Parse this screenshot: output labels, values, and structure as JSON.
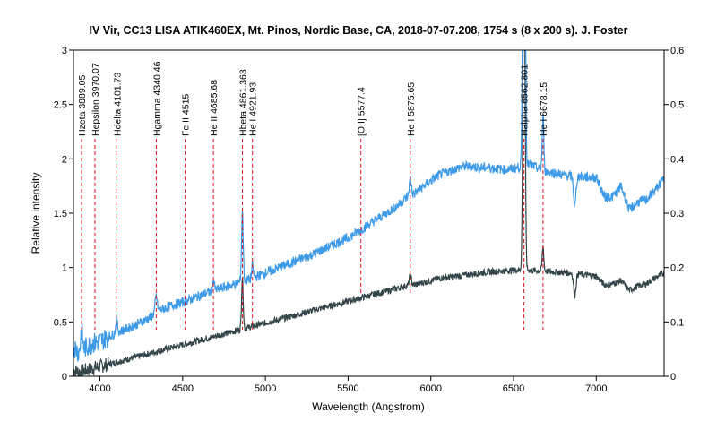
{
  "chart_data": {
    "type": "line",
    "title": "IV Vir, CC13 LISA ATIK460EX, Mt. Pinos, Nordic Base, CA,  2018-07-07.208, 1754 s (8 x 200 s).  J. Foster",
    "xlabel": "Wavelength (Angstrom)",
    "ylabel": "Relative intensity",
    "xlim": [
      3840,
      7410
    ],
    "ylim": [
      0,
      3
    ],
    "y2lim": [
      0,
      0.6
    ],
    "xticks": [
      4000,
      4500,
      5000,
      5500,
      6000,
      6500,
      7000
    ],
    "xtick_labels": [
      "4000",
      "4500",
      "5000",
      "5500",
      "6000",
      "6500",
      "7000"
    ],
    "yticks": [
      0,
      0.5,
      1,
      1.5,
      2,
      2.5,
      3
    ],
    "ytick_labels": [
      "0",
      "0.5",
      "1",
      "1.5",
      "2",
      "2.5",
      "3"
    ],
    "y2ticks": [
      0,
      0.1,
      0.2,
      0.3,
      0.4,
      0.5,
      0.6
    ],
    "y2tick_labels": [
      "0",
      "0.1",
      "0.2",
      "0.3",
      "0.4",
      "0.5",
      "0.6"
    ],
    "grid": false,
    "lines": [
      {
        "label": "Hzeta 3889.05",
        "x": 3889.05
      },
      {
        "label": "Hepsilon 3970.07",
        "x": 3970.07
      },
      {
        "label": "Hdelta 4101.73",
        "x": 4101.73
      },
      {
        "label": "Hgamma 4340.46",
        "x": 4340.46
      },
      {
        "label": "Fe II 4515",
        "x": 4515
      },
      {
        "label": "He II 4685.68",
        "x": 4685.68
      },
      {
        "label": "Hbeta 4861.363",
        "x": 4861.363
      },
      {
        "label": "He I 4921.93",
        "x": 4921.93
      },
      {
        "label": "[O I] 5577.4",
        "x": 5577.4
      },
      {
        "label": "He I 5875.65",
        "x": 5875.65
      },
      {
        "label": "Halpha 6562.801",
        "x": 6562.801
      },
      {
        "label": "He I 6678.15",
        "x": 6678.15
      }
    ],
    "series": [
      {
        "axis": "left",
        "color": "#3d9ae8",
        "x": [
          3840,
          3870,
          3900,
          3950,
          4000,
          4050,
          4100,
          4150,
          4200,
          4250,
          4300,
          4350,
          4400,
          4450,
          4500,
          4550,
          4600,
          4650,
          4700,
          4750,
          4800,
          4850,
          4900,
          4950,
          5000,
          5050,
          5100,
          5150,
          5200,
          5250,
          5300,
          5350,
          5400,
          5450,
          5500,
          5550,
          5600,
          5650,
          5700,
          5750,
          5800,
          5850,
          5900,
          5950,
          6000,
          6050,
          6100,
          6150,
          6200,
          6250,
          6300,
          6350,
          6400,
          6450,
          6500,
          6550,
          6600,
          6650,
          6700,
          6750,
          6800,
          6850,
          6900,
          6950,
          7000,
          7050,
          7100,
          7150,
          7200,
          7250,
          7300,
          7350,
          7410
        ],
        "y": [
          0.28,
          0.22,
          0.25,
          0.3,
          0.32,
          0.36,
          0.4,
          0.43,
          0.46,
          0.5,
          0.54,
          0.6,
          0.63,
          0.66,
          0.68,
          0.71,
          0.74,
          0.77,
          0.79,
          0.82,
          0.84,
          0.87,
          0.89,
          0.92,
          0.95,
          0.98,
          1.01,
          1.04,
          1.07,
          1.1,
          1.13,
          1.17,
          1.2,
          1.24,
          1.27,
          1.32,
          1.37,
          1.42,
          1.47,
          1.52,
          1.57,
          1.64,
          1.68,
          1.74,
          1.8,
          1.85,
          1.88,
          1.91,
          1.93,
          1.93,
          1.92,
          1.92,
          1.91,
          1.9,
          1.91,
          1.93,
          1.95,
          1.91,
          1.88,
          1.87,
          1.85,
          1.84,
          1.84,
          1.83,
          1.83,
          1.65,
          1.65,
          1.75,
          1.53,
          1.6,
          1.62,
          1.7,
          1.82
        ]
      },
      {
        "axis": "right",
        "color": "#34454a",
        "x": [
          3840,
          3870,
          3900,
          3950,
          4000,
          4050,
          4100,
          4150,
          4200,
          4250,
          4300,
          4350,
          4400,
          4450,
          4500,
          4550,
          4600,
          4650,
          4700,
          4750,
          4800,
          4850,
          4900,
          4950,
          5000,
          5050,
          5100,
          5150,
          5200,
          5250,
          5300,
          5350,
          5400,
          5450,
          5500,
          5550,
          5600,
          5650,
          5700,
          5750,
          5800,
          5850,
          5900,
          5950,
          6000,
          6050,
          6100,
          6150,
          6200,
          6250,
          6300,
          6350,
          6400,
          6450,
          6500,
          6550,
          6600,
          6650,
          6700,
          6750,
          6800,
          6850,
          6900,
          6950,
          7000,
          7050,
          7100,
          7150,
          7200,
          7250,
          7300,
          7350,
          7410
        ],
        "y": [
          0.012,
          0.008,
          0.01,
          0.014,
          0.018,
          0.022,
          0.026,
          0.03,
          0.034,
          0.038,
          0.042,
          0.046,
          0.05,
          0.054,
          0.058,
          0.062,
          0.066,
          0.07,
          0.074,
          0.078,
          0.082,
          0.086,
          0.09,
          0.094,
          0.098,
          0.102,
          0.106,
          0.11,
          0.114,
          0.118,
          0.122,
          0.126,
          0.13,
          0.134,
          0.138,
          0.142,
          0.146,
          0.15,
          0.154,
          0.158,
          0.162,
          0.166,
          0.168,
          0.172,
          0.176,
          0.18,
          0.182,
          0.184,
          0.186,
          0.188,
          0.19,
          0.192,
          0.193,
          0.194,
          0.195,
          0.196,
          0.195,
          0.194,
          0.193,
          0.192,
          0.191,
          0.19,
          0.188,
          0.186,
          0.184,
          0.168,
          0.17,
          0.176,
          0.158,
          0.166,
          0.17,
          0.18,
          0.19
        ]
      }
    ],
    "features": [
      {
        "series": 0,
        "x": 3889,
        "height": 0.18,
        "width": 8
      },
      {
        "series": 0,
        "x": 4101,
        "height": 0.12,
        "width": 8
      },
      {
        "series": 0,
        "x": 4340,
        "height": 0.15,
        "width": 9
      },
      {
        "series": 0,
        "x": 4686,
        "height": 0.1,
        "width": 8
      },
      {
        "series": 0,
        "x": 4861,
        "height": 0.65,
        "width": 7
      },
      {
        "series": 0,
        "x": 4922,
        "height": 0.12,
        "width": 7
      },
      {
        "series": 0,
        "x": 5876,
        "height": 0.15,
        "width": 9
      },
      {
        "series": 0,
        "x": 6563,
        "height": 4.5,
        "width": 9
      },
      {
        "series": 0,
        "x": 6678,
        "height": 0.5,
        "width": 7
      },
      {
        "series": 0,
        "x": 6870,
        "height": -0.28,
        "width": 10
      },
      {
        "series": 1,
        "x": 4861,
        "height": 0.095,
        "width": 7
      },
      {
        "series": 1,
        "x": 5876,
        "height": 0.018,
        "width": 9
      },
      {
        "series": 1,
        "x": 6563,
        "height": 0.6,
        "width": 9
      },
      {
        "series": 1,
        "x": 6678,
        "height": 0.045,
        "width": 7
      },
      {
        "series": 1,
        "x": 6870,
        "height": -0.04,
        "width": 10
      }
    ]
  }
}
